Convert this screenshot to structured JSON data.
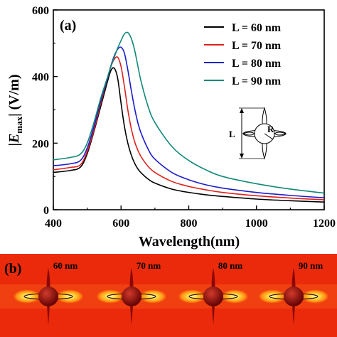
{
  "panel_a_label": "(a)",
  "panel_b_label": "(b)",
  "inset": {
    "length_label": "L",
    "radius_label": "R"
  },
  "panel_b": {
    "field_labels": [
      "60 nm",
      "70 nm",
      "80 nm",
      "90 nm"
    ],
    "colors": {
      "background": "#ea2a0a",
      "hot": "#fff27a",
      "warm": "#ffae1e",
      "particle": "#9e0b0b"
    }
  },
  "chart_data": {
    "type": "line",
    "title": "",
    "xlabel": "Wavelength(nm)",
    "ylabel": "|E_max| (V/m)",
    "ylabel_parts": {
      "open": "|",
      "main": "E",
      "sub": "max",
      "close": "| (V/m)"
    },
    "xlim": [
      400,
      1200
    ],
    "ylim": [
      0,
      600
    ],
    "xticks": [
      400,
      600,
      800,
      1000,
      1200
    ],
    "yticks": [
      0,
      200,
      400,
      600
    ],
    "grid": false,
    "legend_position": "top-right",
    "x": [
      400,
      450,
      480,
      500,
      520,
      540,
      560,
      570,
      580,
      590,
      600,
      610,
      620,
      630,
      640,
      650,
      660,
      680,
      700,
      750,
      800,
      850,
      900,
      1000,
      1100,
      1200
    ],
    "series": [
      {
        "name": "L = 60 nm",
        "color": "#000000",
        "values": [
          112,
          118,
          128,
          168,
          235,
          310,
          385,
          418,
          425,
          395,
          320,
          250,
          200,
          165,
          140,
          122,
          110,
          92,
          80,
          62,
          52,
          45,
          40,
          32,
          27,
          23
        ]
      },
      {
        "name": "L = 70 nm",
        "color": "#e0201c",
        "values": [
          120,
          127,
          135,
          175,
          240,
          320,
          395,
          430,
          452,
          458,
          430,
          370,
          300,
          245,
          205,
          178,
          158,
          130,
          112,
          85,
          70,
          60,
          52,
          42,
          35,
          30
        ]
      },
      {
        "name": "L = 80 nm",
        "color": "#1c1ccc",
        "values": [
          132,
          138,
          148,
          185,
          250,
          328,
          395,
          432,
          462,
          482,
          488,
          470,
          420,
          360,
          305,
          260,
          228,
          182,
          152,
          112,
          90,
          75,
          65,
          52,
          43,
          36
        ]
      },
      {
        "name": "L = 90 nm",
        "color": "#108878",
        "values": [
          150,
          157,
          167,
          200,
          262,
          335,
          398,
          430,
          458,
          485,
          508,
          528,
          532,
          515,
          480,
          430,
          382,
          310,
          262,
          190,
          148,
          120,
          100,
          78,
          62,
          50
        ]
      }
    ]
  }
}
